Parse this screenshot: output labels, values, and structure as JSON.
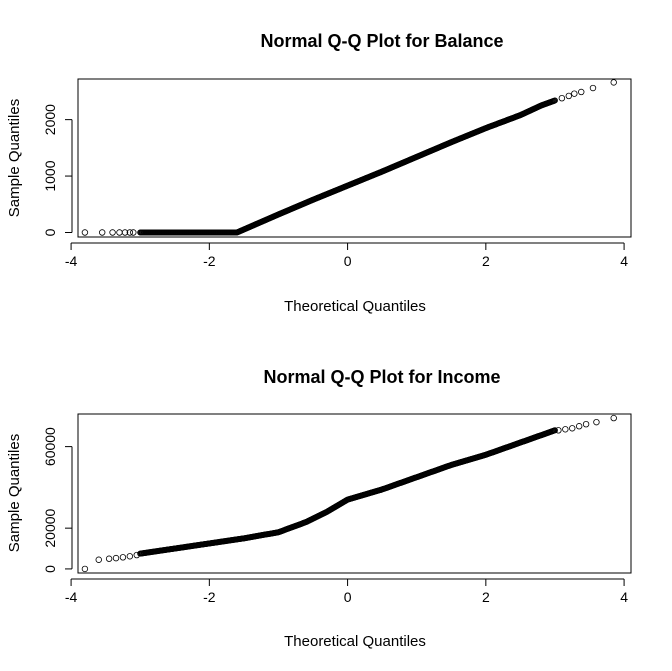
{
  "chart_data": [
    {
      "type": "scatter",
      "title": "Normal Q-Q Plot for Balance",
      "xlabel": "Theoretical Quantiles",
      "ylabel": "Sample Quantiles",
      "xlim": [
        -3.9,
        4.1
      ],
      "ylim": [
        -80,
        2720
      ],
      "xticks": [
        -4,
        -2,
        0,
        2,
        4
      ],
      "yticks": [
        0,
        1000,
        2000
      ],
      "x_tick_labels": [
        "-4",
        "-2",
        "0",
        "2",
        "4"
      ],
      "y_tick_labels": [
        "0",
        "1000",
        "2000"
      ],
      "quantile_curve": [
        [
          -3.8,
          0
        ],
        [
          -1.6,
          0
        ],
        [
          -1.0,
          320
        ],
        [
          -0.5,
          580
        ],
        [
          0.0,
          830
        ],
        [
          0.5,
          1080
        ],
        [
          1.0,
          1340
        ],
        [
          1.5,
          1600
        ],
        [
          2.0,
          1850
        ],
        [
          2.5,
          2080
        ],
        [
          2.8,
          2250
        ],
        [
          3.0,
          2340
        ],
        [
          3.3,
          2460
        ],
        [
          3.6,
          2560
        ],
        [
          3.85,
          2660
        ]
      ],
      "tail_points": [
        [
          -3.8,
          0
        ],
        [
          -3.55,
          0
        ],
        [
          -3.4,
          0
        ],
        [
          -3.3,
          0
        ],
        [
          -3.22,
          0
        ],
        [
          -3.15,
          0
        ],
        [
          -3.1,
          0
        ],
        [
          3.1,
          2380
        ],
        [
          3.2,
          2420
        ],
        [
          3.28,
          2460
        ],
        [
          3.38,
          2490
        ],
        [
          3.55,
          2560
        ],
        [
          3.85,
          2660
        ]
      ]
    },
    {
      "type": "scatter",
      "title": "Normal Q-Q Plot for Income",
      "xlabel": "Theoretical Quantiles",
      "ylabel": "Sample Quantiles",
      "xlim": [
        -3.9,
        4.1
      ],
      "ylim": [
        -2000,
        76000
      ],
      "xticks": [
        -4,
        -2,
        0,
        2,
        4
      ],
      "yticks": [
        0,
        20000,
        60000
      ],
      "x_tick_labels": [
        "-4",
        "-2",
        "0",
        "2",
        "4"
      ],
      "y_tick_labels": [
        "0",
        "20000",
        "60000"
      ],
      "quantile_curve": [
        [
          -3.8,
          0
        ],
        [
          -3.6,
          4500
        ],
        [
          -3.2,
          6000
        ],
        [
          -3.0,
          7500
        ],
        [
          -2.5,
          10000
        ],
        [
          -2.0,
          12500
        ],
        [
          -1.5,
          15000
        ],
        [
          -1.0,
          18000
        ],
        [
          -0.6,
          23000
        ],
        [
          -0.3,
          28000
        ],
        [
          0.0,
          34000
        ],
        [
          0.5,
          39000
        ],
        [
          1.0,
          45000
        ],
        [
          1.5,
          51000
        ],
        [
          2.0,
          56000
        ],
        [
          2.5,
          62000
        ],
        [
          3.0,
          68000
        ],
        [
          3.3,
          70000
        ],
        [
          3.6,
          72000
        ],
        [
          3.85,
          74000
        ]
      ],
      "tail_points": [
        [
          -3.8,
          0
        ],
        [
          -3.6,
          4500
        ],
        [
          -3.45,
          5000
        ],
        [
          -3.35,
          5300
        ],
        [
          -3.25,
          5700
        ],
        [
          -3.15,
          6200
        ],
        [
          -3.05,
          6800
        ],
        [
          3.05,
          68000
        ],
        [
          3.15,
          68500
        ],
        [
          3.25,
          69000
        ],
        [
          3.35,
          70000
        ],
        [
          3.45,
          71000
        ],
        [
          3.6,
          72000
        ],
        [
          3.85,
          74000
        ]
      ]
    }
  ]
}
